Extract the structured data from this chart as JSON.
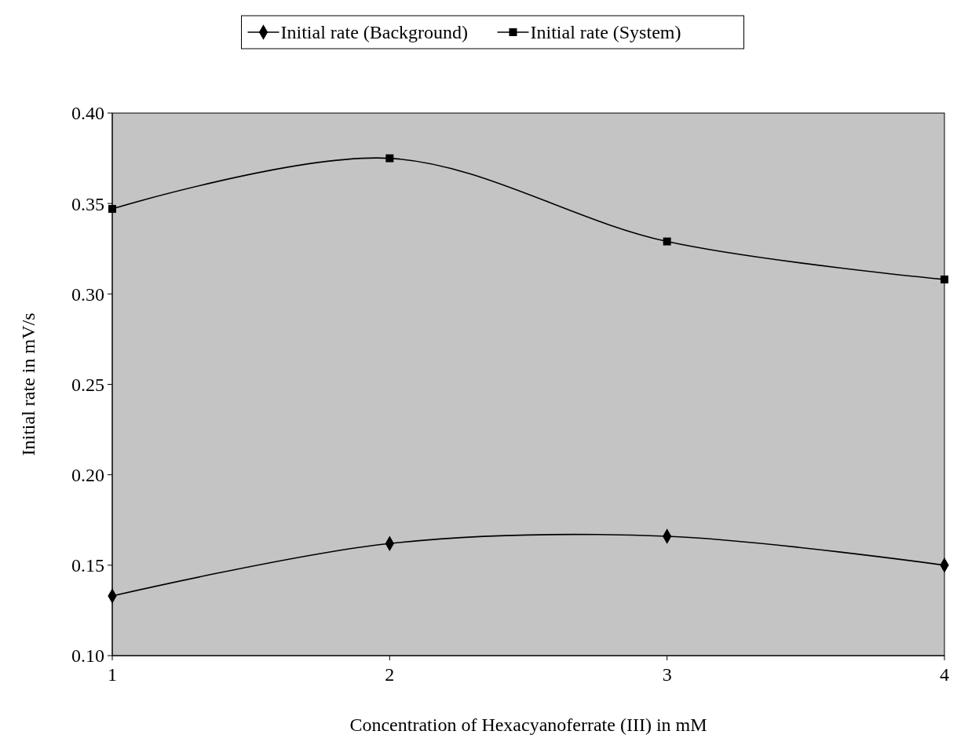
{
  "chart_data": {
    "type": "line",
    "xlabel": "Concentration of Hexacyanoferrate (III) in mM",
    "ylabel": "Initial rate in mV/s",
    "x": [
      1,
      2,
      3,
      4
    ],
    "xlim": [
      1,
      4
    ],
    "xticks": [
      1,
      2,
      3,
      4
    ],
    "ylim": [
      0.1,
      0.4
    ],
    "yticks": [
      {
        "value": 0.1,
        "label": "0.10"
      },
      {
        "value": 0.15,
        "label": "0.15"
      },
      {
        "value": 0.2,
        "label": "0.20"
      },
      {
        "value": 0.25,
        "label": "0.25"
      },
      {
        "value": 0.3,
        "label": "0.30"
      },
      {
        "value": 0.35,
        "label": "0.35"
      },
      {
        "value": 0.4,
        "label": "0.40"
      }
    ],
    "legend": "top",
    "grid": false,
    "line_style": "solid",
    "series": [
      {
        "name": "Initial rate (Background)",
        "color": "#000000",
        "marker": "diamond",
        "values": [
          0.133,
          0.162,
          0.166,
          0.15
        ]
      },
      {
        "name": "Initial rate (System)",
        "color": "#000000",
        "marker": "square",
        "values": [
          0.347,
          0.375,
          0.329,
          0.308
        ]
      }
    ]
  }
}
